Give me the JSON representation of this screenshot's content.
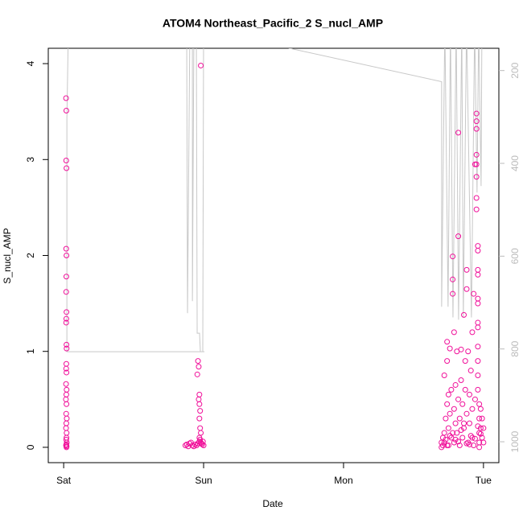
{
  "chart_data": {
    "type": "scatter",
    "title": "ATOM4 Northeast_Pacific_2 S_nucl_AMP",
    "x_label": "Date",
    "y_label": "S_nucl_AMP",
    "xlim": [
      -0.11,
      3.11
    ],
    "xticks": [
      {
        "value": 0,
        "label": "Sat"
      },
      {
        "value": 1,
        "label": "Sun"
      },
      {
        "value": 2,
        "label": "Mon"
      },
      {
        "value": 3,
        "label": "Tue"
      }
    ],
    "ylim": [
      -0.16,
      4.16
    ],
    "yticks": [
      0,
      1,
      2,
      3,
      4
    ],
    "y2lim": [
      1045,
      152
    ],
    "y2ticks": [
      200,
      400,
      600,
      800,
      1000
    ],
    "series": [
      {
        "type": "scatter",
        "color": "#f0109a",
        "x": [
          0.017,
          0.019,
          0.018,
          0.02,
          0.018,
          0.02,
          0.019,
          0.018,
          0.02,
          0.019,
          0.018,
          0.02,
          0.021,
          0.019,
          0.018,
          0.02,
          0.017,
          0.021,
          0.019,
          0.016,
          0.02,
          0.018,
          0.022,
          0.019,
          0.017,
          0.021,
          0.02,
          0.018,
          0.022,
          0.019,
          0.017,
          0.021,
          0.02,
          0.98,
          0.96,
          0.965,
          0.955,
          0.97,
          0.965,
          0.97,
          0.975,
          0.97,
          0.975,
          0.98,
          0.97,
          0.87,
          0.88,
          0.89,
          0.9,
          0.91,
          0.92,
          0.93,
          0.94,
          0.95,
          0.96,
          0.97,
          0.98,
          0.99,
          1.0,
          0.975,
          0.985,
          0.995,
          2.7,
          2.7,
          2.71,
          2.71,
          2.72,
          2.72,
          2.73,
          2.73,
          2.74,
          2.74,
          2.74,
          2.75,
          2.75,
          2.75,
          2.76,
          2.76,
          2.77,
          2.77,
          2.78,
          2.78,
          2.78,
          2.79,
          2.79,
          2.79,
          2.8,
          2.8,
          2.81,
          2.81,
          2.82,
          2.82,
          2.82,
          2.83,
          2.83,
          2.84,
          2.84,
          2.85,
          2.85,
          2.86,
          2.86,
          2.87,
          2.87,
          2.88,
          2.88,
          2.88,
          2.89,
          2.89,
          2.9,
          2.9,
          2.91,
          2.91,
          2.92,
          2.92,
          2.93,
          2.93,
          2.94,
          2.94,
          2.95,
          2.95,
          2.95,
          2.95,
          2.95,
          2.95,
          2.95,
          2.95,
          2.96,
          2.96,
          2.96,
          2.96,
          2.96,
          2.96,
          2.96,
          2.96,
          2.96,
          2.96,
          2.96,
          2.96,
          2.97,
          2.97,
          2.97,
          2.97,
          2.97,
          2.98,
          2.98,
          2.99,
          2.99,
          3.0,
          3.0,
          2.72,
          2.76,
          2.8,
          2.84,
          2.88,
          2.92,
          2.96,
          2.74,
          2.78,
          2.82,
          2.86,
          2.9,
          2.94,
          2.98
        ],
        "values": [
          3.64,
          3.51,
          2.99,
          2.91,
          2.07,
          2.0,
          1.78,
          1.62,
          1.41,
          1.34,
          1.3,
          1.07,
          1.03,
          0.87,
          0.82,
          0.78,
          0.66,
          0.6,
          0.55,
          0.5,
          0.45,
          0.35,
          0.3,
          0.25,
          0.2,
          0.15,
          0.1,
          0.08,
          0.05,
          0.03,
          0.02,
          0.01,
          0.0,
          3.98,
          0.9,
          0.84,
          0.76,
          0.55,
          0.5,
          0.45,
          0.38,
          0.3,
          0.2,
          0.15,
          0.1,
          0.02,
          0.03,
          0.01,
          0.04,
          0.05,
          0.02,
          0.01,
          0.03,
          0.02,
          0.04,
          0.06,
          0.05,
          0.03,
          0.02,
          0.08,
          0.04,
          0.06,
          0.0,
          0.05,
          0.1,
          0.02,
          0.15,
          0.75,
          0.3,
          0.08,
          0.45,
          0.9,
          1.1,
          0.2,
          0.55,
          0.02,
          1.03,
          0.35,
          0.1,
          0.6,
          1.6,
          1.75,
          1.99,
          1.2,
          0.4,
          0.05,
          0.25,
          0.65,
          1.0,
          0.15,
          3.28,
          2.2,
          0.5,
          0.3,
          0.02,
          1.02,
          0.7,
          0.1,
          0.45,
          1.38,
          0.2,
          0.6,
          0.9,
          1.65,
          1.85,
          0.35,
          1.0,
          0.05,
          0.25,
          0.55,
          0.8,
          0.12,
          1.2,
          0.4,
          1.6,
          0.02,
          2.95,
          0.5,
          3.48,
          3.4,
          3.32,
          3.05,
          2.95,
          2.82,
          2.6,
          2.48,
          2.1,
          2.05,
          1.85,
          1.8,
          1.55,
          1.5,
          1.3,
          1.25,
          1.05,
          0.9,
          0.75,
          0.6,
          0.45,
          0.3,
          0.15,
          0.05,
          0.0,
          0.4,
          0.2,
          0.1,
          0.3,
          0.05,
          0.2,
          0.05,
          0.12,
          0.08,
          0.18,
          0.04,
          0.1,
          0.22,
          0.02,
          0.15,
          0.06,
          0.25,
          0.03,
          0.09,
          0.14
        ]
      },
      {
        "type": "line",
        "axis": "y2",
        "color": "#c8c8c8",
        "x": [
          1.006,
          0.023,
          0.023,
          0.034,
          0.879,
          0.885,
          0.902,
          0.92,
          0.92,
          0.931,
          0.948,
          0.954,
          0.971,
          0.977,
          0.994,
          1.0,
          1.615,
          2.701,
          2.701,
          2.724,
          2.747,
          2.764,
          2.782,
          2.805,
          2.822,
          2.845,
          2.856,
          2.879,
          2.914,
          2.937,
          2.954,
          2.966,
          2.983,
          2.989
        ],
        "values": [
          806,
          806,
          304,
          100,
          100,
          723,
          100,
          100,
          697,
          100,
          100,
          766,
          766,
          806,
          806,
          100,
          152,
          224,
          709,
          100,
          709,
          100,
          732,
          100,
          737,
          100,
          732,
          100,
          732,
          100,
          463,
          100,
          449,
          100
        ]
      }
    ]
  }
}
